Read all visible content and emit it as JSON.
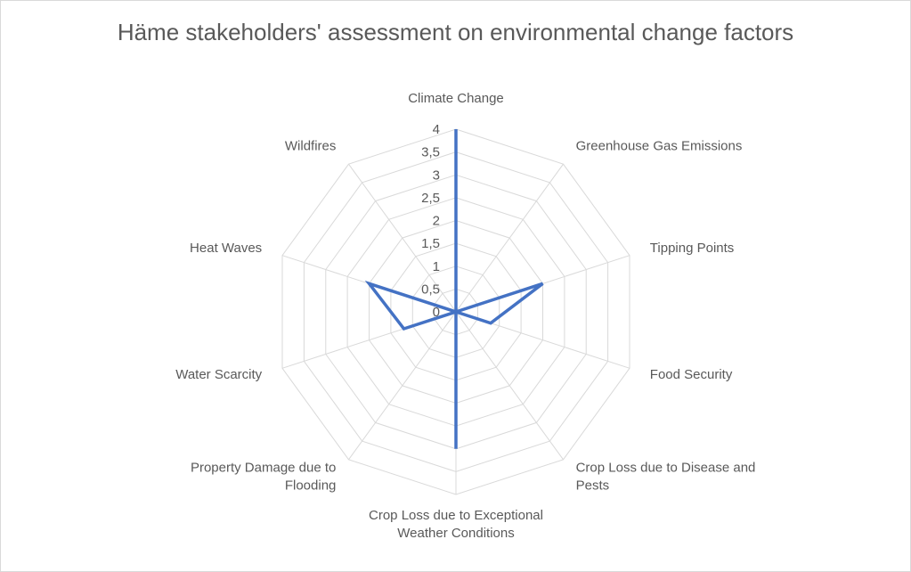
{
  "chart_data": {
    "type": "radar",
    "title": "Häme stakeholders' assessment on environmental change factors",
    "categories": [
      "Climate Change",
      "Greenhouse Gas Emissions",
      "Tipping Points",
      "Food Security",
      "Crop Loss due to Disease and Pests",
      "Crop Loss due to Exceptional Weather Conditions",
      "Property Damage due to Flooding",
      "Water Scarcity",
      "Heat Waves",
      "Wildfires"
    ],
    "category_lines": [
      [
        "Climate Change"
      ],
      [
        "Greenhouse Gas Emissions"
      ],
      [
        "Tipping Points"
      ],
      [
        "Food Security"
      ],
      [
        "Crop Loss due to Disease and",
        "Pests"
      ],
      [
        "Crop Loss due to Exceptional",
        "Weather Conditions"
      ],
      [
        "Property Damage due to",
        "Flooding"
      ],
      [
        "Water Scarcity"
      ],
      [
        "Heat Waves"
      ],
      [
        "Wildfires"
      ]
    ],
    "series": [
      {
        "values": [
          4,
          0,
          2,
          0.8,
          0,
          3,
          0,
          1.2,
          2,
          0
        ]
      }
    ],
    "ylim": [
      0,
      4
    ],
    "ticks": [
      "0",
      "0,5",
      "1",
      "1,5",
      "2",
      "2,5",
      "3",
      "3,5",
      "4"
    ],
    "grid": true,
    "colors": {
      "series": "#4472c4",
      "grid": "#d9d9d9",
      "text": "#595959"
    }
  }
}
